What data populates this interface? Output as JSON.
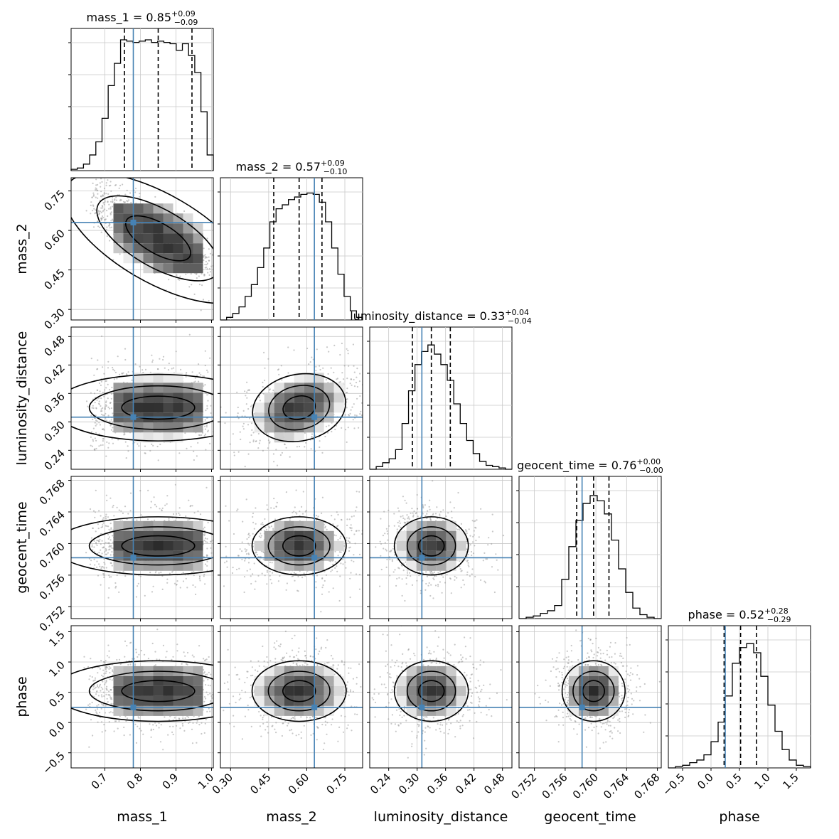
{
  "chart_data": {
    "type": "corner",
    "grid": true,
    "truth_color": "#4682b4",
    "parameters": [
      {
        "name": "mass_1",
        "title_label": "mass_1",
        "title_value": "0.85",
        "title_plus": "+0.09",
        "title_minus": "−0.09",
        "range": [
          0.605,
          1.005
        ],
        "ticks": [
          0.7,
          0.8,
          0.9,
          1.0
        ],
        "tick_labels": [
          "0.7",
          "0.8",
          "0.9",
          "1.0"
        ],
        "truth": 0.78,
        "quantiles": [
          0.755,
          0.85,
          0.945
        ],
        "hist": [
          0.01,
          0.02,
          0.05,
          0.12,
          0.22,
          0.4,
          0.65,
          0.82,
          1.0,
          0.99,
          0.98,
          0.99,
          1.0,
          0.98,
          0.99,
          0.98,
          0.97,
          0.92,
          0.97,
          0.88,
          0.75,
          0.45,
          0.12
        ]
      },
      {
        "name": "mass_2",
        "title_label": "mass_2",
        "title_value": "0.57",
        "title_plus": "+0.09",
        "title_minus": "−0.10",
        "range": [
          0.26,
          0.82
        ],
        "ticks": [
          0.3,
          0.45,
          0.6,
          0.75
        ],
        "tick_labels": [
          "0.30",
          "0.45",
          "0.60",
          "0.75"
        ],
        "truth": 0.63,
        "quantiles": [
          0.47,
          0.57,
          0.66
        ],
        "hist": [
          0.0,
          0.02,
          0.05,
          0.1,
          0.18,
          0.27,
          0.4,
          0.55,
          0.75,
          0.85,
          0.88,
          0.92,
          0.94,
          0.96,
          0.97,
          0.96,
          0.9,
          0.75,
          0.55,
          0.35,
          0.18,
          0.07,
          0.02
        ]
      },
      {
        "name": "luminosity_distance",
        "title_label": "luminosity_distance",
        "title_value": "0.33",
        "title_plus": "+0.04",
        "title_minus": "−0.04",
        "range": [
          0.2,
          0.5
        ],
        "ticks": [
          0.24,
          0.3,
          0.36,
          0.42,
          0.48
        ],
        "tick_labels": [
          "0.24",
          "0.30",
          "0.36",
          "0.42",
          "0.48"
        ],
        "truth": 0.31,
        "quantiles": [
          0.29,
          0.33,
          0.37
        ],
        "hist": [
          0.0,
          0.02,
          0.05,
          0.08,
          0.15,
          0.35,
          0.6,
          0.8,
          0.9,
          0.95,
          0.88,
          0.8,
          0.68,
          0.5,
          0.35,
          0.22,
          0.12,
          0.06,
          0.03,
          0.02,
          0.01,
          0.0
        ]
      },
      {
        "name": "geocent_time",
        "title_label": "geocent_time",
        "title_value": "0.76",
        "title_plus": "+0.00",
        "title_minus": "−0.00",
        "range": [
          0.75,
          0.7685
        ],
        "ticks": [
          0.752,
          0.756,
          0.76,
          0.764,
          0.768
        ],
        "tick_labels": [
          "0.752",
          "0.756",
          "0.760",
          "0.764",
          "0.768"
        ],
        "truth": 0.7582,
        "quantiles": [
          0.7575,
          0.7597,
          0.7617
        ],
        "hist": [
          0.0,
          0.01,
          0.02,
          0.04,
          0.06,
          0.1,
          0.3,
          0.55,
          0.75,
          0.88,
          0.94,
          0.9,
          0.8,
          0.6,
          0.38,
          0.2,
          0.08,
          0.03,
          0.01,
          0.0
        ]
      },
      {
        "name": "phase",
        "title_label": "phase",
        "title_value": "0.52",
        "title_plus": "+0.28",
        "title_minus": "−0.29",
        "range": [
          -0.75,
          1.75
        ],
        "ticks": [
          -0.5,
          0.0,
          0.5,
          1.0,
          1.5
        ],
        "tick_labels": [
          "−0.5",
          "0.0",
          "0.5",
          "1.0",
          "1.5"
        ],
        "truth": 0.25,
        "quantiles": [
          0.23,
          0.52,
          0.8
        ],
        "hist": [
          0.0,
          0.01,
          0.02,
          0.04,
          0.06,
          0.1,
          0.2,
          0.35,
          0.55,
          0.8,
          0.92,
          0.95,
          0.88,
          0.7,
          0.48,
          0.28,
          0.14,
          0.06,
          0.02,
          0.01
        ]
      }
    ],
    "row_tick_labels": {
      "mass_2": [
        "0.30",
        "0.45",
        "0.60",
        "0.75"
      ],
      "luminosity_distance": [
        "0.24",
        "0.30",
        "0.36",
        "0.42",
        "0.48"
      ],
      "geocent_time": [
        "0.752",
        "0.756",
        "0.760",
        "0.764",
        "0.768"
      ],
      "phase": [
        "−0.5",
        "0.0",
        "0.5",
        "1.0",
        "1.5"
      ]
    },
    "row_ranges": {
      "mass_2": [
        0.26,
        0.8
      ],
      "luminosity_distance": [
        0.2,
        0.5
      ],
      "geocent_time": [
        0.7505,
        0.7685
      ],
      "phase": [
        -0.75,
        1.6
      ]
    }
  }
}
